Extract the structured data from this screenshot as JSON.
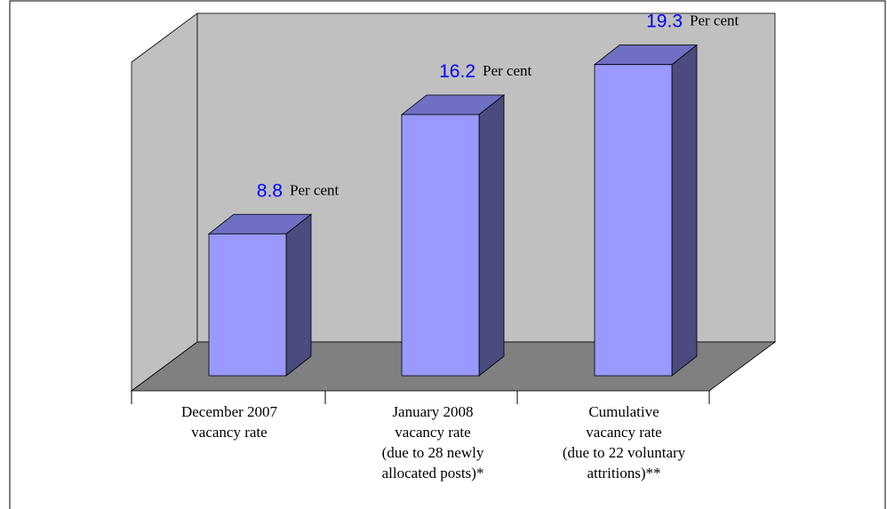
{
  "chart_data": {
    "type": "bar3d",
    "categories": [
      [
        "December 2007",
        "vacancy rate"
      ],
      [
        "January 2008",
        "vacancy rate",
        "(due to 28 newly",
        "allocated posts)*"
      ],
      [
        "Cumulative",
        "vacancy rate",
        "(due to 22 voluntary",
        "attritions)**"
      ]
    ],
    "values": [
      8.8,
      16.2,
      19.3
    ],
    "unit": "Per cent",
    "ylim": [
      0,
      20
    ],
    "color": "#9999ff",
    "top_color": "#6f6fc4",
    "side_color": "#4b4b80",
    "label_color": "#0000ff"
  }
}
